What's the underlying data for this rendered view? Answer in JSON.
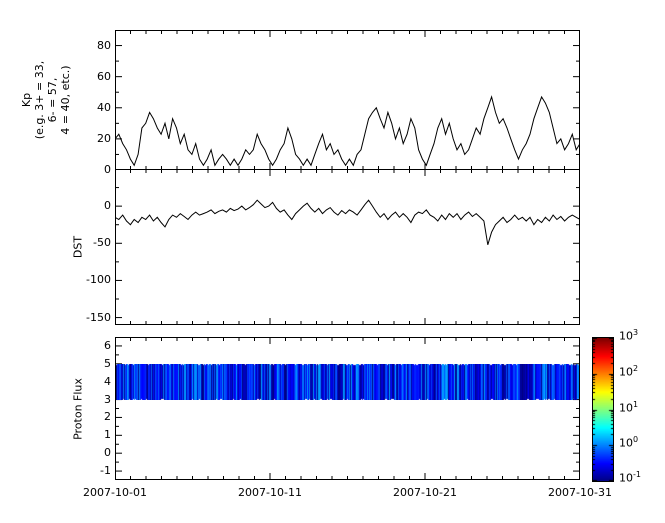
{
  "figure": {
    "background": "#ffffff",
    "axis_color": "#000000"
  },
  "xaxis": {
    "tick_labels": [
      "2007-10-01",
      "2007-10-11",
      "2007-10-21",
      "2007-10-31"
    ],
    "tick_days": [
      0,
      10,
      20,
      30
    ],
    "span_days": 30
  },
  "chart_data": [
    {
      "type": "line",
      "panel": "kp",
      "ylabel": "Kp\n(e.g. 3+ = 33,\n6- = 57,\n4 = 40, etc.)",
      "ylim": [
        0,
        90
      ],
      "yticks": [
        0,
        20,
        40,
        60,
        80
      ],
      "line_color": "#000000",
      "x_start": "2007-10-01",
      "x_end": "2007-10-31",
      "values": [
        20,
        23,
        17,
        13,
        7,
        3,
        10,
        27,
        30,
        37,
        33,
        27,
        23,
        30,
        20,
        33,
        27,
        17,
        23,
        13,
        10,
        17,
        7,
        3,
        7,
        13,
        3,
        7,
        10,
        7,
        3,
        7,
        3,
        7,
        13,
        10,
        13,
        23,
        17,
        13,
        7,
        3,
        7,
        13,
        17,
        27,
        20,
        10,
        7,
        3,
        7,
        3,
        10,
        17,
        23,
        13,
        17,
        10,
        13,
        7,
        3,
        7,
        3,
        10,
        13,
        23,
        33,
        37,
        40,
        33,
        27,
        37,
        30,
        20,
        27,
        17,
        23,
        33,
        27,
        13,
        7,
        3,
        10,
        17,
        27,
        33,
        23,
        30,
        20,
        13,
        17,
        10,
        13,
        20,
        27,
        23,
        33,
        40,
        47,
        37,
        30,
        33,
        27,
        20,
        13,
        7,
        13,
        17,
        23,
        33,
        40,
        47,
        43,
        37,
        27,
        17,
        20,
        13,
        17,
        23,
        13,
        17
      ]
    },
    {
      "type": "line",
      "panel": "dst",
      "ylabel": "DST",
      "ylim": [
        -160,
        50
      ],
      "yticks": [
        0,
        -50,
        -100,
        -150
      ],
      "line_color": "#000000",
      "x_start": "2007-10-01",
      "x_end": "2007-10-31",
      "values": [
        -15,
        -18,
        -12,
        -20,
        -25,
        -18,
        -22,
        -15,
        -18,
        -12,
        -20,
        -15,
        -22,
        -28,
        -18,
        -12,
        -15,
        -10,
        -14,
        -18,
        -12,
        -8,
        -12,
        -10,
        -8,
        -5,
        -10,
        -7,
        -5,
        -8,
        -3,
        -6,
        -4,
        0,
        -5,
        -2,
        2,
        8,
        3,
        -2,
        0,
        5,
        -3,
        -8,
        -5,
        -12,
        -18,
        -10,
        -5,
        0,
        4,
        -3,
        -8,
        -3,
        -10,
        -5,
        -2,
        -8,
        -12,
        -6,
        -10,
        -5,
        -8,
        -12,
        -5,
        2,
        8,
        0,
        -8,
        -15,
        -10,
        -18,
        -12,
        -8,
        -15,
        -10,
        -15,
        -22,
        -12,
        -8,
        -10,
        -5,
        -12,
        -15,
        -20,
        -12,
        -18,
        -10,
        -15,
        -10,
        -18,
        -12,
        -8,
        -14,
        -10,
        -15,
        -20,
        -52,
        -35,
        -25,
        -20,
        -15,
        -22,
        -18,
        -12,
        -18,
        -15,
        -20,
        -15,
        -25,
        -18,
        -22,
        -15,
        -20,
        -12,
        -18,
        -14,
        -20,
        -15,
        -12,
        -15,
        -18
      ]
    },
    {
      "type": "heatmap",
      "panel": "proton",
      "ylabel": "Proton Flux",
      "ylim": [
        -1.5,
        6.5
      ],
      "yticks": [
        -1,
        0,
        1,
        2,
        3,
        4,
        5,
        6
      ],
      "band_y_extent": [
        3,
        5
      ],
      "flux_range_log10": [
        -1,
        0.2
      ],
      "colormap": "jet",
      "n_columns": 463,
      "seed": 7,
      "colorbar": {
        "scale": "log",
        "range_exponents": [
          -1,
          3
        ],
        "tick_exponents": [
          3,
          2,
          1,
          0,
          -1
        ]
      }
    }
  ]
}
